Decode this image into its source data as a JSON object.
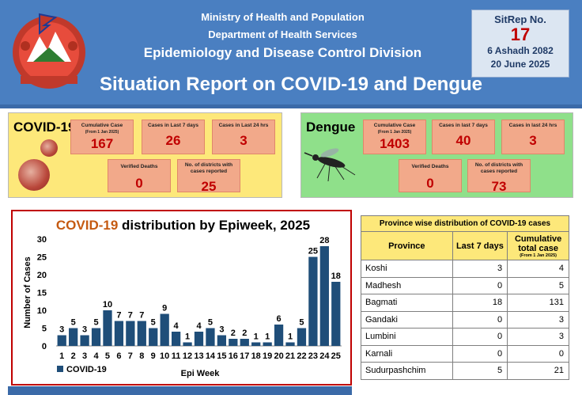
{
  "header": {
    "line1": "Ministry of Health and Population",
    "line2": "Department of Health Services",
    "line3": "Epidemiology and Disease Control Division",
    "report_title": "Situation Report on COVID-19 and Dengue",
    "emblem_icon": "nepal-emblem-icon"
  },
  "sitrep": {
    "label": "SitRep No.",
    "number": "17",
    "date_np": "6 Ashadh 2082",
    "date_en": "20 June 2025"
  },
  "covid": {
    "name": "COVID-19",
    "cumulative_label": "Cumulative Case",
    "cumulative_sub": "(From 1 Jan 2025)",
    "cumulative_value": "167",
    "last7_label": "Cases in Last 7 days",
    "last7_value": "26",
    "last24_label": "Cases in Last 24 hrs",
    "last24_value": "3",
    "deaths_label": "Verified Deaths",
    "deaths_value": "0",
    "districts_label": "No. of districts with cases reported",
    "districts_value": "25"
  },
  "dengue": {
    "name": "Dengue",
    "cumulative_label": "Cumulative Case",
    "cumulative_sub": "(From 1 Jan 2025)",
    "cumulative_value": "1403",
    "last7_label": "Cases in last 7 days",
    "last7_value": "40",
    "last24_label": "Cases in last 24 hrs",
    "last24_value": "3",
    "deaths_label": "Verified Deaths",
    "deaths_value": "0",
    "districts_label": "No. of districts with cases reported",
    "districts_value": "73"
  },
  "chart_title_highlight": "COVID-19",
  "chart_title_rest": " distribution by Epiweek, 2025",
  "chart_data": {
    "type": "bar",
    "title": "COVID-19 distribution by Epiweek, 2025",
    "xlabel": "Epi Week",
    "ylabel": "Number of Cases",
    "categories": [
      "1",
      "2",
      "3",
      "4",
      "5",
      "6",
      "7",
      "8",
      "9",
      "10",
      "11",
      "12",
      "13",
      "14",
      "15",
      "16",
      "17",
      "18",
      "19",
      "20",
      "21",
      "22",
      "23",
      "24",
      "25"
    ],
    "series": [
      {
        "name": "COVID-19",
        "values": [
          3,
          5,
          3,
          5,
          10,
          7,
          7,
          7,
          5,
          9,
          4,
          1,
          4,
          5,
          3,
          2,
          2,
          1,
          1,
          6,
          1,
          5,
          25,
          28,
          18
        ]
      }
    ],
    "yticks": [
      "0",
      "5",
      "10",
      "15",
      "20",
      "25",
      "30"
    ],
    "ylim": [
      0,
      30
    ],
    "bar_color": "#1f4e79",
    "legend_position": "bottom-left",
    "grid": false
  },
  "province_table": {
    "title": "Province wise distribution of COVID-19 cases",
    "col_province": "Province",
    "col_last7": "Last 7 days",
    "col_cumulative": "Cumulative total case",
    "col_cumulative_sub": "(From 1 Jan 2025)",
    "rows": [
      {
        "province": "Koshi",
        "last7": "3",
        "cumulative": "4"
      },
      {
        "province": "Madhesh",
        "last7": "0",
        "cumulative": "5"
      },
      {
        "province": "Bagmati",
        "last7": "18",
        "cumulative": "131"
      },
      {
        "province": "Gandaki",
        "last7": "0",
        "cumulative": "3"
      },
      {
        "province": "Lumbini",
        "last7": "0",
        "cumulative": "3"
      },
      {
        "province": "Karnali",
        "last7": "0",
        "cumulative": "0"
      },
      {
        "province": "Sudurpashchim",
        "last7": "5",
        "cumulative": "21"
      }
    ]
  },
  "colors": {
    "header_blue": "#4a7fc1",
    "covid_panel": "#fde87a",
    "dengue_panel": "#8fe08a",
    "stat_box": "#f2a98a",
    "value_red": "#c00000"
  }
}
